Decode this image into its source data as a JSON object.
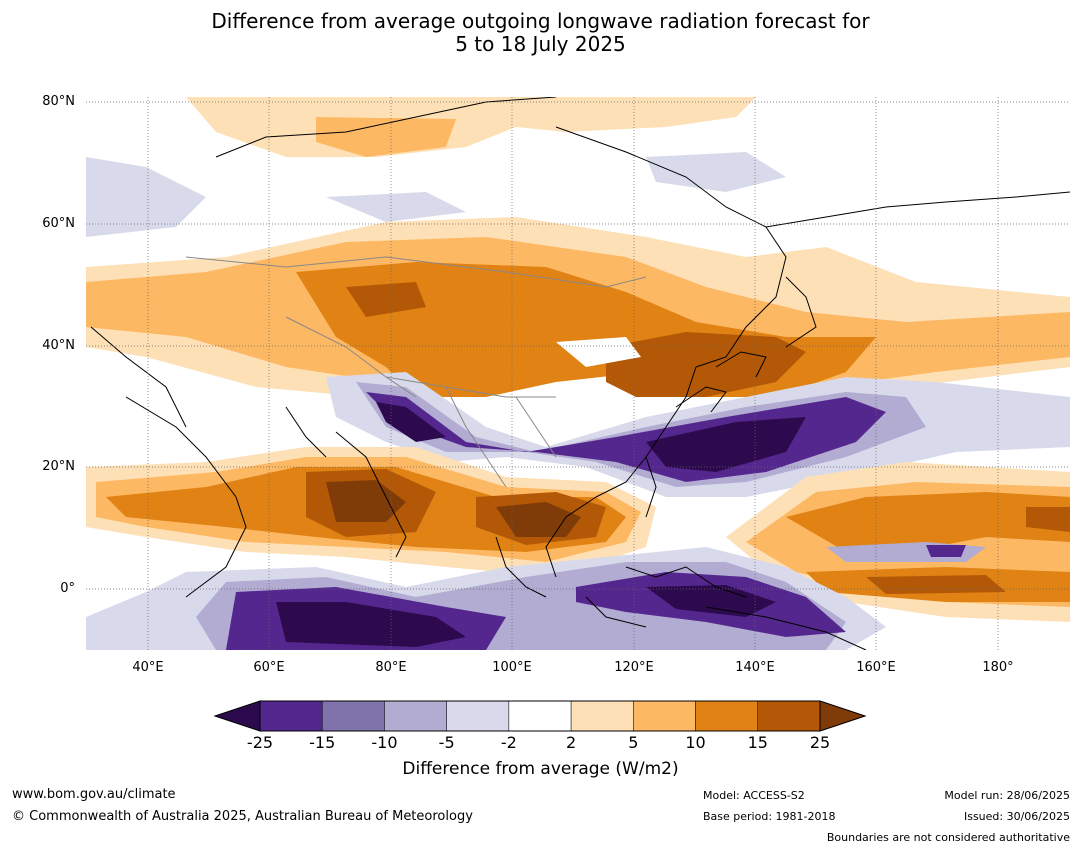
{
  "title": {
    "line1": "Difference from average outgoing longwave radiation forecast for",
    "line2": "5 to 18 July 2025"
  },
  "map": {
    "lat_labels": [
      "80°N",
      "60°N",
      "40°N",
      "20°N",
      "0°"
    ],
    "lon_labels": [
      "40°E",
      "60°E",
      "80°E",
      "100°E",
      "120°E",
      "140°E",
      "160°E",
      "180°"
    ]
  },
  "colorbar": {
    "ticks": [
      "-25",
      "-15",
      "-10",
      "-5",
      "-2",
      "2",
      "5",
      "10",
      "15",
      "25"
    ],
    "colors": [
      "#2d0a4e",
      "#54278f",
      "#8073ac",
      "#b2abd2",
      "#d8daeb",
      "#ffffff",
      "#fee0b6",
      "#fdb863",
      "#e08214",
      "#b35806",
      "#7f3b08"
    ],
    "label": "Difference from average (W/m2)"
  },
  "footer": {
    "website": "www.bom.gov.au/climate",
    "copyright": "© Commonwealth of Australia 2025, Australian Bureau of Meteorology",
    "model": "Model: ACCESS-S2",
    "base_period": "Base period: 1981-2018",
    "model_run": "Model run: 28/06/2025",
    "issued": "Issued: 30/06/2025",
    "disclaimer": "Boundaries are not considered authoritative"
  }
}
